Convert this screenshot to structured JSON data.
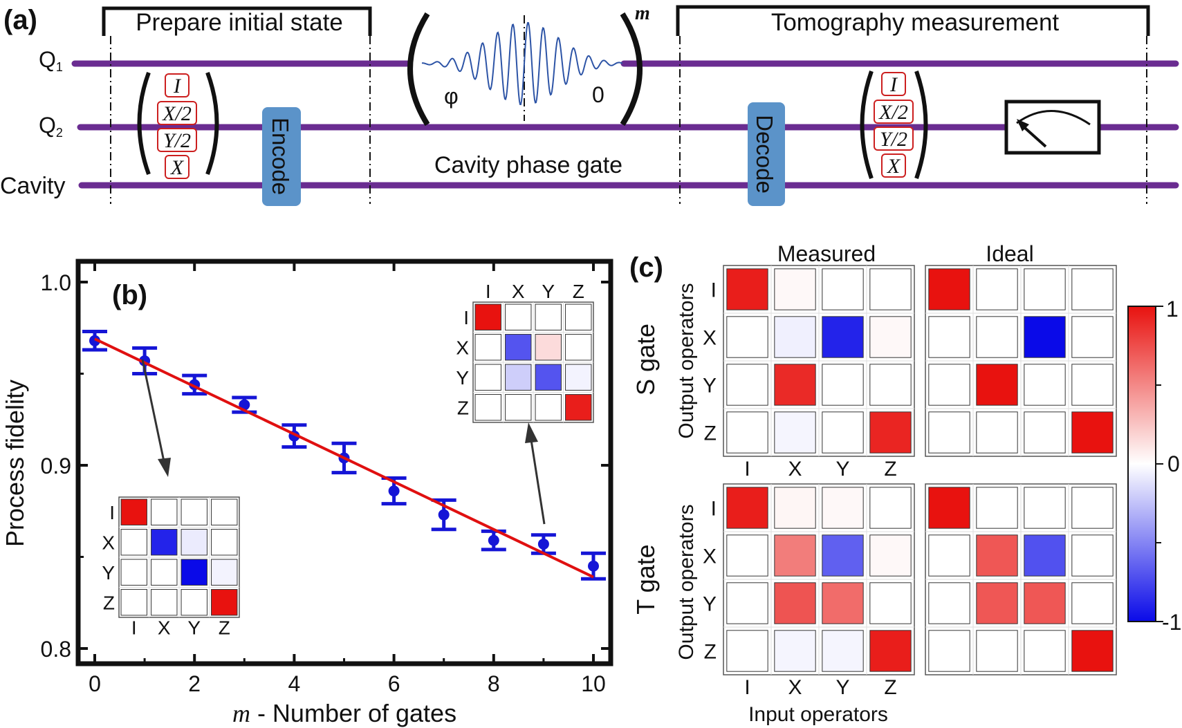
{
  "panel_a": {
    "label": "(a)",
    "qubit_labels": [
      "Q",
      "Q",
      "Cavity"
    ],
    "qubit_subscripts": [
      "1",
      "2"
    ],
    "prepare_title": "Prepare initial state",
    "tomography_title": "Tomography measurement",
    "prep_ops": [
      "I",
      "X/2",
      "Y/2",
      "X"
    ],
    "tomo_ops": [
      "I",
      "X/2",
      "Y/2",
      "X"
    ],
    "encode_label": "Encode",
    "decode_label": "Decode",
    "phase_gate_label": "Cavity phase gate",
    "pulse_phase_left": "φ",
    "pulse_phase_right": "0",
    "power_label": "m",
    "line_color": "#6a2c91",
    "box_color": "#5b93c9",
    "op_box_color": "#cc1f1f"
  },
  "panel_b": {
    "label": "(b)",
    "inset_labels": [
      "I",
      "X",
      "Y",
      "Z"
    ],
    "inset_left": [
      [
        1,
        0,
        0,
        0
      ],
      [
        0,
        -0.9,
        -0.08,
        0
      ],
      [
        0,
        0,
        -1,
        -0.05
      ],
      [
        0,
        0,
        0,
        1
      ]
    ],
    "inset_right": [
      [
        1,
        0,
        0,
        0
      ],
      [
        0,
        -0.7,
        0.15,
        0
      ],
      [
        0,
        -0.2,
        -0.7,
        -0.05
      ],
      [
        0,
        0,
        0,
        0.95
      ]
    ]
  },
  "chart_data": {
    "type": "scatter",
    "xlabel_italic": "m",
    "xlabel_rest": " - Number of gates",
    "ylabel": "Process fidelity",
    "xlim": [
      -0.3,
      10.3
    ],
    "ylim": [
      0.79,
      1.01
    ],
    "xticks": [
      0,
      2,
      4,
      6,
      8,
      10
    ],
    "yticks": [
      0.8,
      0.9,
      1.0
    ],
    "ytick_labels": [
      "0.8",
      "0.9",
      "1.0"
    ],
    "x": [
      0,
      1,
      2,
      3,
      4,
      5,
      6,
      7,
      8,
      9,
      10
    ],
    "y": [
      0.968,
      0.957,
      0.944,
      0.933,
      0.916,
      0.904,
      0.886,
      0.873,
      0.859,
      0.857,
      0.845
    ],
    "err": [
      0.005,
      0.007,
      0.005,
      0.004,
      0.006,
      0.008,
      0.007,
      0.008,
      0.005,
      0.005,
      0.007
    ],
    "fit": {
      "x": [
        0,
        10
      ],
      "y": [
        0.969,
        0.839
      ]
    },
    "marker_color": "#1515d6",
    "fit_color": "#e01010"
  },
  "panel_c": {
    "label": "(c)",
    "col_titles": [
      "Measured",
      "Ideal"
    ],
    "row_titles": [
      "S gate",
      "T gate"
    ],
    "axis_side_label": "Output operators",
    "axis_bottom_label": "Input operators",
    "op_labels": [
      "I",
      "X",
      "Y",
      "Z"
    ],
    "s_measured": [
      [
        0.95,
        0.03,
        0,
        0
      ],
      [
        0,
        -0.06,
        -0.9,
        0.03
      ],
      [
        0,
        0.9,
        0,
        0
      ],
      [
        0,
        -0.04,
        0,
        0.92
      ]
    ],
    "s_ideal": [
      [
        1,
        0,
        0,
        0
      ],
      [
        0,
        0,
        -1,
        0
      ],
      [
        0,
        1,
        0,
        0
      ],
      [
        0,
        0,
        0,
        1
      ]
    ],
    "t_measured": [
      [
        0.95,
        0.04,
        0.03,
        0
      ],
      [
        0,
        0.55,
        -0.65,
        0.03
      ],
      [
        0,
        0.72,
        0.62,
        0
      ],
      [
        0,
        -0.04,
        -0.04,
        0.95
      ]
    ],
    "t_ideal": [
      [
        1,
        0,
        0,
        0
      ],
      [
        0,
        0.71,
        -0.71,
        0
      ],
      [
        0,
        0.71,
        0.71,
        0
      ],
      [
        0,
        0,
        0,
        1
      ]
    ],
    "colorbar_ticks": [
      "1",
      "0",
      "-1"
    ]
  }
}
